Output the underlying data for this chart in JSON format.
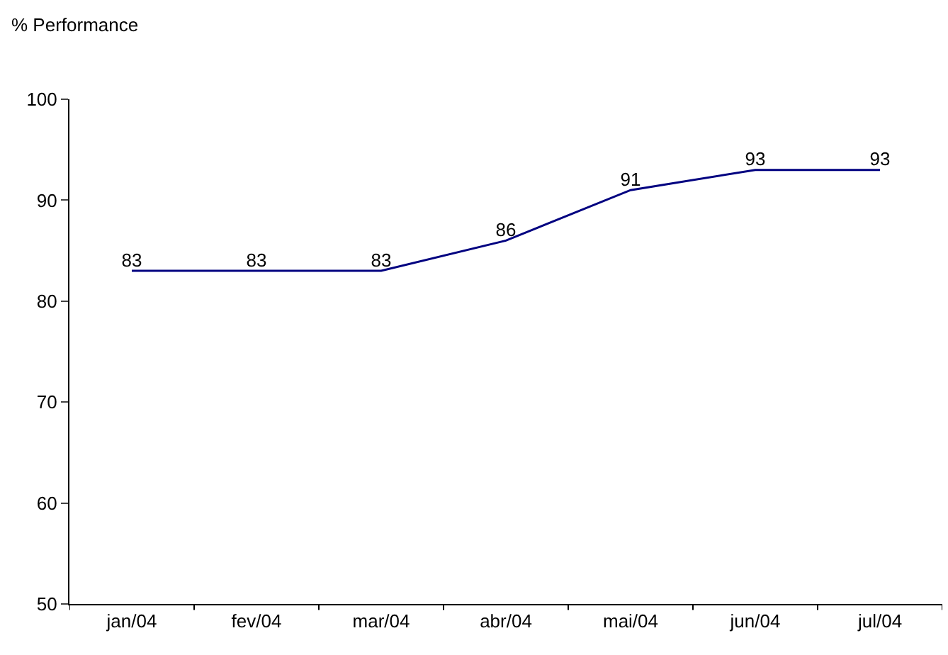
{
  "chart_data": {
    "type": "line",
    "ylabel": "% Performance",
    "categories": [
      "jan/04",
      "fev/04",
      "mar/04",
      "abr/04",
      "mai/04",
      "jun/04",
      "jul/04"
    ],
    "series": [
      {
        "color": "#000080",
        "values": [
          83,
          83,
          83,
          86,
          91,
          93,
          93
        ]
      }
    ],
    "ylim": [
      50,
      100
    ],
    "yticks": [
      50,
      60,
      70,
      80,
      90,
      100
    ],
    "legend": false,
    "data_labels": true,
    "marker": "none",
    "line_style": "solid"
  }
}
